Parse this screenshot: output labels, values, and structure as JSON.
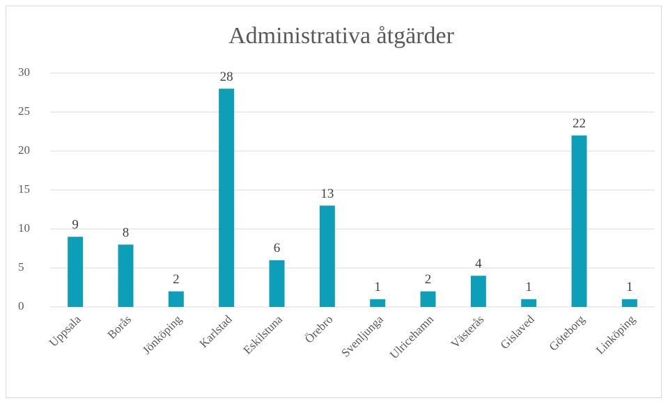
{
  "chart_data": {
    "type": "bar",
    "title": "Administrativa åtgärder",
    "categories": [
      "Uppsala",
      "Borås",
      "Jönköping",
      "Karlstad",
      "Eskilstuna",
      "Örebro",
      "Svenljunga",
      "Ulricehamn",
      "Västerås",
      "Gislaved",
      "Göteborg",
      "Linköping"
    ],
    "values": [
      9,
      8,
      2,
      28,
      6,
      13,
      1,
      2,
      4,
      1,
      22,
      1
    ],
    "color": "#0e9fb8",
    "ylim": [
      0,
      30
    ],
    "yticks": [
      0,
      5,
      10,
      15,
      20,
      25,
      30
    ],
    "grid": true
  }
}
